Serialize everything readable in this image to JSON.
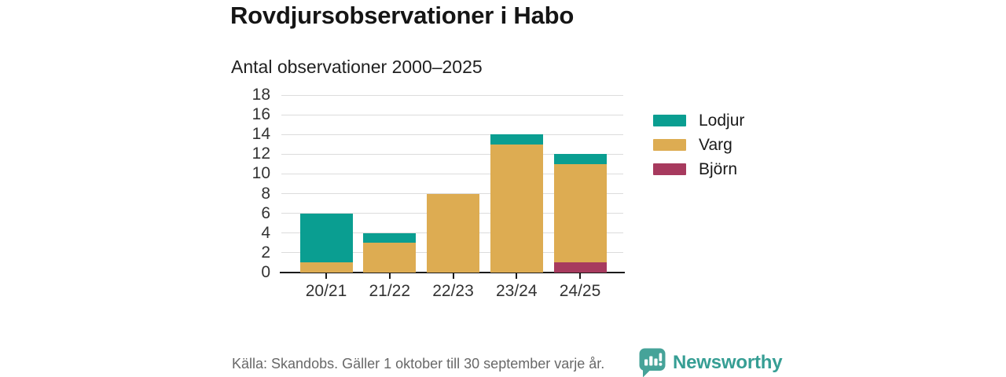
{
  "title": "Rovdjursobservationer i Habo",
  "subtitle": "Antal observationer 2000–2025",
  "footer": {
    "source": "Källa: Skandobs. Gäller 1 oktober till 30 september varje år.",
    "brand": "Newsworthy"
  },
  "colors": {
    "lodjur": "#0a9e91",
    "varg": "#ddac52",
    "bjorn": "#a73a5e",
    "grid": "#dcdcdc",
    "axis": "#1a1a1a",
    "brand_teal": "#369e94"
  },
  "icons": {
    "brand_logo": "newsworthy-speech-bubble-bar-chart-icon"
  },
  "chart_data": {
    "type": "bar",
    "stacked": true,
    "title": "Rovdjursobservationer i Habo",
    "subtitle": "Antal observationer 2000–2025",
    "categories": [
      "20/21",
      "21/22",
      "22/23",
      "23/24",
      "24/25"
    ],
    "series": [
      {
        "name": "Lodjur",
        "color": "#0a9e91",
        "values": [
          5,
          1,
          0,
          1,
          1
        ]
      },
      {
        "name": "Varg",
        "color": "#ddac52",
        "values": [
          1,
          3,
          8,
          13,
          10
        ]
      },
      {
        "name": "Björn",
        "color": "#a73a5e",
        "values": [
          0,
          0,
          0,
          0,
          1
        ]
      }
    ],
    "totals": [
      6,
      4,
      8,
      14,
      12
    ],
    "stack_order_bottom_to_top": [
      "Björn",
      "Varg",
      "Lodjur"
    ],
    "xlabel": "",
    "ylabel": "",
    "ylim": [
      0,
      18
    ],
    "ytick_step": 2,
    "grid": true,
    "legend_position": "right"
  }
}
